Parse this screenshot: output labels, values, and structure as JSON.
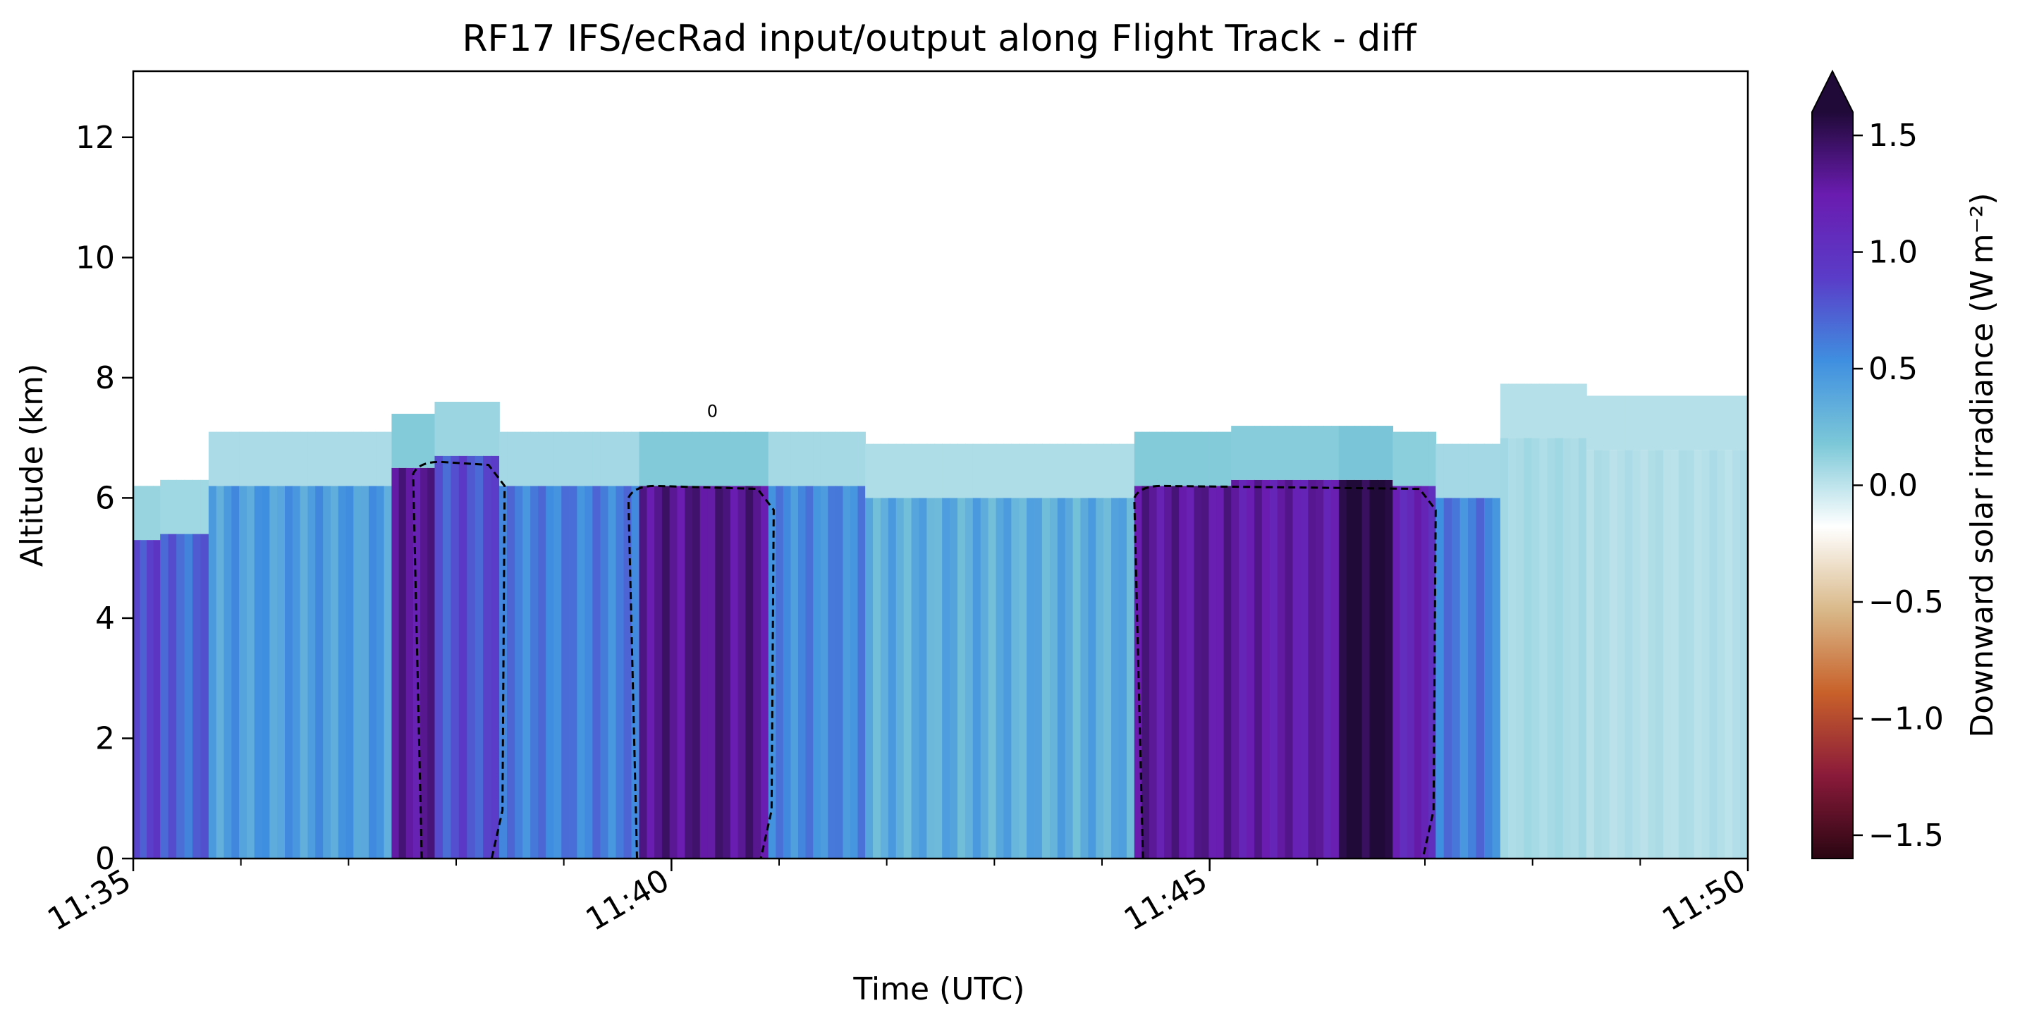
{
  "chart_data": {
    "type": "heatmap",
    "title": "RF17 IFS/ecRad input/output along Flight Track - diff",
    "xlabel": "Time (UTC)",
    "ylabel": "Altitude (km)",
    "xlim": [
      "11:35",
      "11:50"
    ],
    "ylim": [
      0,
      13.1
    ],
    "x_ticks": [
      "11:35",
      "11:40",
      "11:45",
      "11:50"
    ],
    "x_tick_values_min": [
      0,
      5,
      10,
      15
    ],
    "x_minor_tick_step_min": 1,
    "y_ticks": [
      0,
      2,
      4,
      6,
      8,
      10,
      12
    ],
    "colorbar": {
      "label": "Downward solar irradiance (W m⁻²)",
      "vmin": -1.6,
      "vmax": 1.6,
      "ticks": [
        -1.5,
        -1.0,
        -0.5,
        0.0,
        0.5,
        1.0,
        1.5
      ],
      "tick_labels": [
        "−1.5",
        "−1.0",
        "−0.5",
        "0.0",
        "0.5",
        "1.0",
        "1.5"
      ],
      "extend": "max",
      "colormap": [
        "#2a0612",
        "#8a1a3a",
        "#c8612a",
        "#d9b98a",
        "#ffffff",
        "#7cc8d8",
        "#3f8fe0",
        "#5a3cc8",
        "#6a1cb0",
        "#200a38"
      ]
    },
    "field_bands_min_km_value": [
      {
        "t0": 0.0,
        "t1": 0.25,
        "top": 5.3,
        "value": 0.85
      },
      {
        "t0": 0.25,
        "t1": 0.7,
        "top": 5.4,
        "value": 0.7
      },
      {
        "t0": 0.7,
        "t1": 2.4,
        "top": 6.2,
        "value": 0.45
      },
      {
        "t0": 2.4,
        "t1": 2.8,
        "top": 6.5,
        "value": 1.3
      },
      {
        "t0": 2.8,
        "t1": 3.4,
        "top": 6.7,
        "value": 0.8
      },
      {
        "t0": 3.4,
        "t1": 4.7,
        "top": 6.2,
        "value": 0.6
      },
      {
        "t0": 4.7,
        "t1": 5.9,
        "top": 6.2,
        "value": 1.35
      },
      {
        "t0": 5.9,
        "t1": 6.8,
        "top": 6.2,
        "value": 0.55
      },
      {
        "t0": 6.8,
        "t1": 9.3,
        "top": 6.0,
        "value": 0.35
      },
      {
        "t0": 9.3,
        "t1": 10.2,
        "top": 6.2,
        "value": 1.3
      },
      {
        "t0": 10.2,
        "t1": 11.2,
        "top": 6.3,
        "value": 1.25
      },
      {
        "t0": 11.2,
        "t1": 11.7,
        "top": 6.3,
        "value": 1.6
      },
      {
        "t0": 11.7,
        "t1": 12.1,
        "top": 6.2,
        "value": 1.15
      },
      {
        "t0": 12.1,
        "t1": 12.7,
        "top": 6.0,
        "value": 0.6
      },
      {
        "t0": 12.7,
        "t1": 13.5,
        "top": 7.0,
        "value": 0.06
      },
      {
        "t0": 13.5,
        "t1": 15.0,
        "top": 6.8,
        "value": 0.03
      }
    ],
    "contour_level": 0,
    "contour_label": "0"
  }
}
